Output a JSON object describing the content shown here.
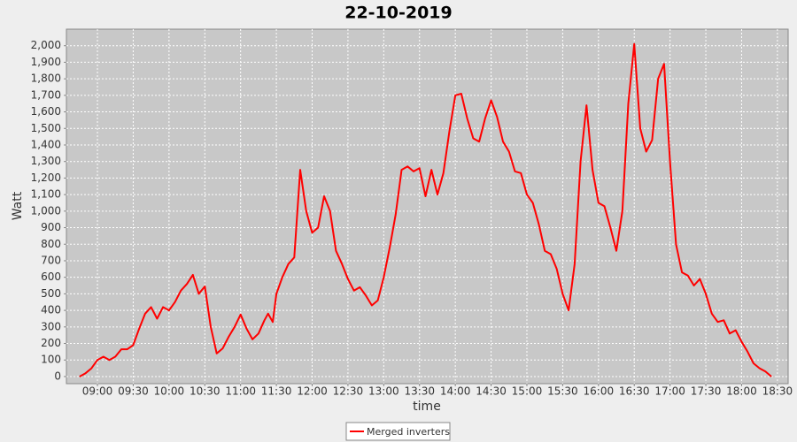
{
  "chart_data": {
    "type": "line",
    "title": "22-10-2019",
    "x_label": "time",
    "y_label": "Watt",
    "x": [
      "08:45",
      "08:50",
      "08:55",
      "09:00",
      "09:05",
      "09:10",
      "09:15",
      "09:20",
      "09:25",
      "09:30",
      "09:35",
      "09:40",
      "09:45",
      "09:50",
      "09:55",
      "10:00",
      "10:05",
      "10:10",
      "10:15",
      "10:20",
      "10:25",
      "10:30",
      "10:35",
      "10:40",
      "10:45",
      "10:50",
      "10:55",
      "11:00",
      "11:05",
      "11:10",
      "11:15",
      "11:20",
      "11:23",
      "11:27",
      "11:30",
      "11:35",
      "11:40",
      "11:45",
      "11:50",
      "11:55",
      "12:00",
      "12:05",
      "12:10",
      "12:15",
      "12:20",
      "12:25",
      "12:30",
      "12:35",
      "12:40",
      "12:45",
      "12:50",
      "12:55",
      "13:00",
      "13:05",
      "13:10",
      "13:15",
      "13:20",
      "13:25",
      "13:30",
      "13:35",
      "13:40",
      "13:45",
      "13:50",
      "13:55",
      "14:00",
      "14:05",
      "14:10",
      "14:15",
      "14:20",
      "14:25",
      "14:30",
      "14:35",
      "14:40",
      "14:45",
      "14:50",
      "14:55",
      "15:00",
      "15:05",
      "15:10",
      "15:15",
      "15:20",
      "15:25",
      "15:30",
      "15:35",
      "15:40",
      "15:45",
      "15:50",
      "15:55",
      "16:00",
      "16:05",
      "16:10",
      "16:15",
      "16:20",
      "16:25",
      "16:30",
      "16:35",
      "16:40",
      "16:45",
      "16:50",
      "16:55",
      "17:00",
      "17:05",
      "17:10",
      "17:15",
      "17:20",
      "17:25",
      "17:30",
      "17:35",
      "17:40",
      "17:45",
      "17:50",
      "17:55",
      "18:00",
      "18:05",
      "18:10",
      "18:15",
      "18:20",
      "18:25"
    ],
    "series": [
      {
        "name": "Merged inverters",
        "color": "#ff0000",
        "values": [
          0,
          20,
          50,
          100,
          120,
          100,
          120,
          165,
          165,
          190,
          290,
          380,
          420,
          350,
          420,
          400,
          450,
          520,
          560,
          615,
          500,
          545,
          300,
          140,
          170,
          240,
          300,
          375,
          290,
          225,
          260,
          340,
          380,
          330,
          500,
          600,
          680,
          720,
          1250,
          1000,
          870,
          900,
          1090,
          1000,
          760,
          680,
          590,
          520,
          540,
          490,
          430,
          460,
          600,
          780,
          980,
          1250,
          1270,
          1240,
          1260,
          1090,
          1250,
          1100,
          1230,
          1480,
          1700,
          1710,
          1560,
          1440,
          1420,
          1560,
          1670,
          1570,
          1420,
          1360,
          1240,
          1230,
          1100,
          1050,
          920,
          760,
          740,
          650,
          500,
          400,
          680,
          1300,
          1640,
          1250,
          1050,
          1030,
          900,
          760,
          1000,
          1650,
          2010,
          1500,
          1360,
          1430,
          1800,
          1890,
          1300,
          800,
          630,
          610,
          550,
          590,
          500,
          380,
          330,
          340,
          260,
          280,
          210,
          150,
          80,
          50,
          30,
          0
        ]
      }
    ],
    "xlim": [
      "08:34",
      "18:39"
    ],
    "xticks": [
      "09:00",
      "09:30",
      "10:00",
      "10:30",
      "11:00",
      "11:30",
      "12:00",
      "12:30",
      "13:00",
      "13:30",
      "14:00",
      "14:30",
      "15:00",
      "15:30",
      "16:00",
      "16:30",
      "17:00",
      "17:30",
      "18:00",
      "18:30"
    ],
    "ylim": [
      -43,
      2100
    ],
    "yticks": [
      0,
      100,
      200,
      300,
      400,
      500,
      600,
      700,
      800,
      900,
      {
        "value": 1000,
        "label": "1,000"
      },
      {
        "value": 1100,
        "label": "1,100"
      },
      {
        "value": 1200,
        "label": "1,200"
      },
      {
        "value": 1300,
        "label": "1,300"
      },
      {
        "value": 1400,
        "label": "1,400"
      },
      {
        "value": 1500,
        "label": "1,500"
      },
      {
        "value": 1600,
        "label": "1,600"
      },
      {
        "value": 1700,
        "label": "1,700"
      },
      {
        "value": 1800,
        "label": "1,800"
      },
      {
        "value": 1900,
        "label": "1,900"
      },
      {
        "value": 2000,
        "label": "2,000"
      }
    ],
    "grid": true
  }
}
